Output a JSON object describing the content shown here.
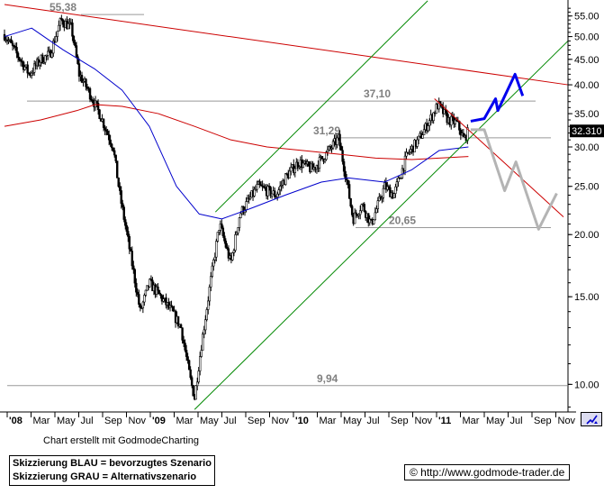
{
  "chart_data": {
    "type": "candlestick",
    "xlabels": [
      "'08",
      "Mar",
      "May",
      "Jul",
      "Sep",
      "Nov",
      "'09",
      "Mar",
      "May",
      "Jul",
      "Sep",
      "Nov",
      "'10",
      "Mar",
      "May",
      "Jul",
      "Sep",
      "Nov",
      "'11",
      "Mar",
      "May",
      "Jul",
      "Sep",
      "Nov"
    ],
    "yticks": [
      "10.00",
      "15.00",
      "20.00",
      "25.00",
      "30.00",
      "35.00",
      "40.00",
      "45.00",
      "50.00",
      "55.00"
    ],
    "ylim": [
      8.8,
      58
    ],
    "yscale": "log",
    "last_price": "32.310",
    "levels": [
      {
        "label": "55,38",
        "value": 55.38
      },
      {
        "label": "37,10",
        "value": 37.1
      },
      {
        "label": "31,29",
        "value": 31.29
      },
      {
        "label": "20,65",
        "value": 20.65
      },
      {
        "label": "9,94",
        "value": 9.94
      }
    ],
    "anchors": [
      {
        "d": 0,
        "v": 50.5
      },
      {
        "d": 55,
        "v": 42
      },
      {
        "d": 80,
        "v": 45
      },
      {
        "d": 100,
        "v": 46
      },
      {
        "d": 125,
        "v": 54
      },
      {
        "d": 148,
        "v": 52
      },
      {
        "d": 165,
        "v": 42
      },
      {
        "d": 185,
        "v": 39
      },
      {
        "d": 210,
        "v": 35
      },
      {
        "d": 240,
        "v": 30
      },
      {
        "d": 255,
        "v": 24
      },
      {
        "d": 275,
        "v": 19
      },
      {
        "d": 300,
        "v": 14
      },
      {
        "d": 320,
        "v": 16
      },
      {
        "d": 345,
        "v": 15
      },
      {
        "d": 370,
        "v": 14
      },
      {
        "d": 390,
        "v": 13
      },
      {
        "d": 410,
        "v": 10.3
      },
      {
        "d": 420,
        "v": 9.4
      },
      {
        "d": 435,
        "v": 12
      },
      {
        "d": 455,
        "v": 16
      },
      {
        "d": 475,
        "v": 21
      },
      {
        "d": 500,
        "v": 17.5
      },
      {
        "d": 520,
        "v": 22
      },
      {
        "d": 560,
        "v": 25
      },
      {
        "d": 600,
        "v": 24
      },
      {
        "d": 620,
        "v": 26
      },
      {
        "d": 650,
        "v": 28
      },
      {
        "d": 680,
        "v": 27
      },
      {
        "d": 710,
        "v": 29
      },
      {
        "d": 738,
        "v": 31.2
      },
      {
        "d": 755,
        "v": 26
      },
      {
        "d": 770,
        "v": 21.5
      },
      {
        "d": 790,
        "v": 23
      },
      {
        "d": 810,
        "v": 21
      },
      {
        "d": 840,
        "v": 25
      },
      {
        "d": 860,
        "v": 24
      },
      {
        "d": 890,
        "v": 29
      },
      {
        "d": 915,
        "v": 31
      },
      {
        "d": 940,
        "v": 34
      },
      {
        "d": 958,
        "v": 36.5
      },
      {
        "d": 980,
        "v": 34
      },
      {
        "d": 1000,
        "v": 33.5
      },
      {
        "d": 1015,
        "v": 31
      },
      {
        "d": 1025,
        "v": 32.3
      }
    ],
    "ma_blue": [
      {
        "d": 0,
        "v": 50
      },
      {
        "d": 60,
        "v": 52
      },
      {
        "d": 130,
        "v": 47
      },
      {
        "d": 200,
        "v": 43
      },
      {
        "d": 260,
        "v": 39
      },
      {
        "d": 320,
        "v": 33
      },
      {
        "d": 380,
        "v": 25
      },
      {
        "d": 430,
        "v": 22
      },
      {
        "d": 480,
        "v": 21.5
      },
      {
        "d": 540,
        "v": 22.5
      },
      {
        "d": 620,
        "v": 24
      },
      {
        "d": 700,
        "v": 25.5
      },
      {
        "d": 760,
        "v": 26
      },
      {
        "d": 840,
        "v": 25.5
      },
      {
        "d": 900,
        "v": 27
      },
      {
        "d": 960,
        "v": 29.5
      },
      {
        "d": 1025,
        "v": 30
      }
    ],
    "ma_red": [
      {
        "d": 0,
        "v": 33
      },
      {
        "d": 80,
        "v": 34
      },
      {
        "d": 160,
        "v": 35.5
      },
      {
        "d": 200,
        "v": 36.5
      },
      {
        "d": 260,
        "v": 36.2
      },
      {
        "d": 340,
        "v": 35
      },
      {
        "d": 420,
        "v": 33
      },
      {
        "d": 500,
        "v": 31
      },
      {
        "d": 580,
        "v": 30
      },
      {
        "d": 660,
        "v": 29.5
      },
      {
        "d": 740,
        "v": 29
      },
      {
        "d": 820,
        "v": 28.5
      },
      {
        "d": 900,
        "v": 28.3
      },
      {
        "d": 960,
        "v": 28.5
      },
      {
        "d": 1025,
        "v": 28.7
      }
    ],
    "trend_red_1": [
      {
        "d": 0,
        "v": 58
      },
      {
        "d": 1245,
        "v": 40
      }
    ],
    "trend_red_2": [
      {
        "d": 950,
        "v": 37.5
      },
      {
        "d": 1235,
        "v": 21.7
      }
    ],
    "channel_green_upper": [
      {
        "d": 466,
        "v": 22.2
      },
      {
        "d": 935,
        "v": 59
      }
    ],
    "channel_green_lower": [
      {
        "d": 420,
        "v": 8.9
      },
      {
        "d": 1245,
        "v": 49
      }
    ],
    "scenario_blue": [
      {
        "d": 1030,
        "v": 33.8
      },
      {
        "d": 1060,
        "v": 34.2
      },
      {
        "d": 1085,
        "v": 37.5
      },
      {
        "d": 1090,
        "v": 35.5
      },
      {
        "d": 1128,
        "v": 42
      },
      {
        "d": 1145,
        "v": 38
      }
    ],
    "scenario_gray": [
      {
        "d": 1030,
        "v": 32.5
      },
      {
        "d": 1060,
        "v": 32.5
      },
      {
        "d": 1105,
        "v": 24.5
      },
      {
        "d": 1130,
        "v": 28
      },
      {
        "d": 1180,
        "v": 20.5
      },
      {
        "d": 1220,
        "v": 24.2
      }
    ]
  },
  "credit": "Chart erstellt mit GodmodeCharting",
  "legend": {
    "line1": "Skizzierung BLAU = bevorzugtes Szenario",
    "line2": "Skizzierung GRAU = Alternativszenario"
  },
  "url": "© http://www.godmode-trader.de",
  "colors": {
    "candle": "#000000",
    "ma_blue": "#0000cc",
    "ma_red": "#cc0000",
    "trend": "#cc0000",
    "channel": "#008800",
    "scenario_blue": "#0000ee",
    "scenario_gray": "#b4b4b4",
    "level_label": "#808080"
  }
}
